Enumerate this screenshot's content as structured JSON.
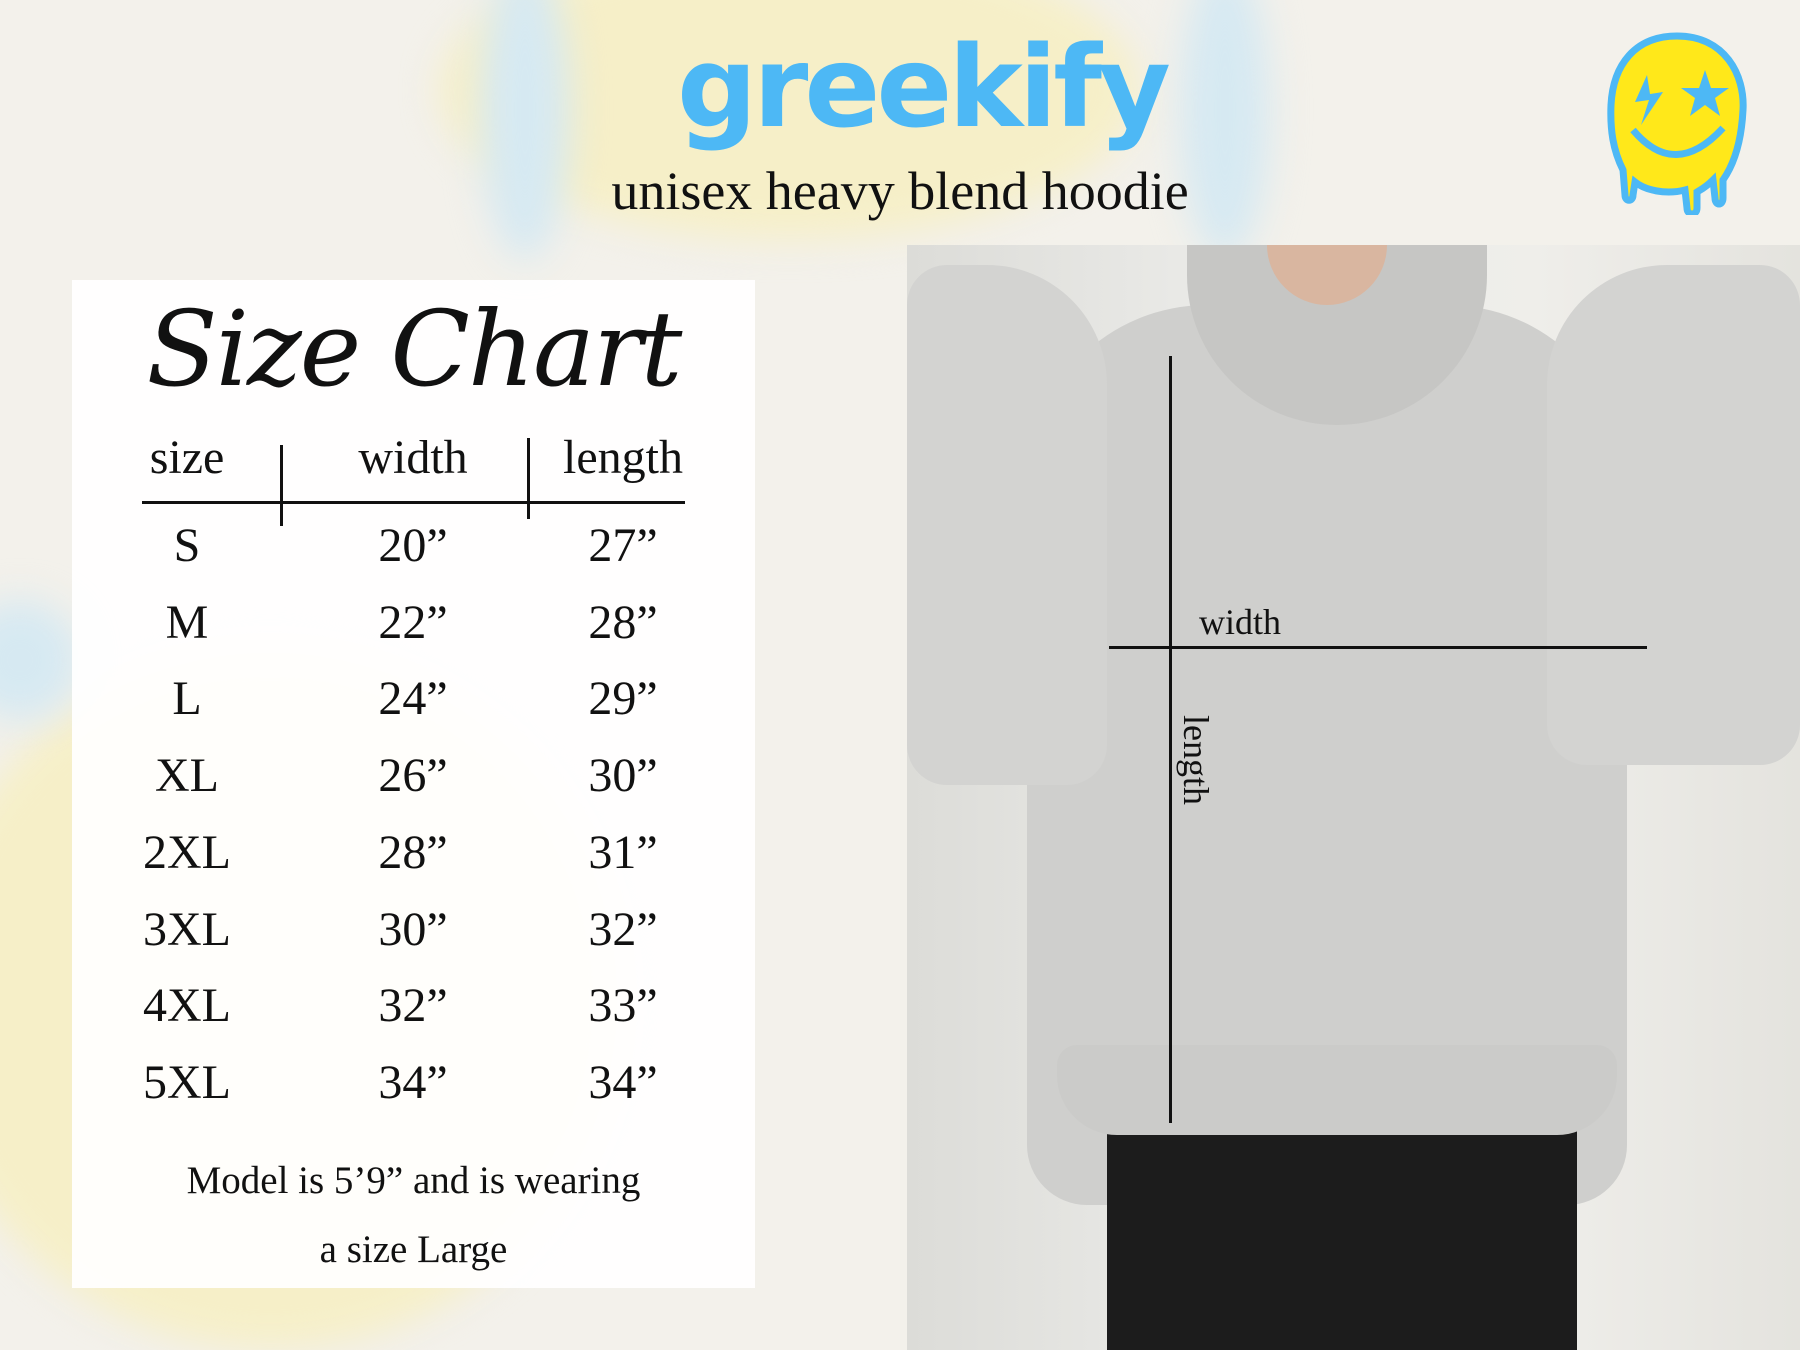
{
  "brand": {
    "logo_text": "greekify",
    "subtitle": "unisex heavy blend hoodie",
    "accent": "#4db8f5",
    "smiley_color": "#ffe81a"
  },
  "size_chart": {
    "title": "Size Chart",
    "headers": [
      "size",
      "width",
      "length"
    ],
    "rows": [
      {
        "size": "S",
        "width": "20”",
        "length": "27”"
      },
      {
        "size": "M",
        "width": "22”",
        "length": "28”"
      },
      {
        "size": "L",
        "width": "24”",
        "length": "29”"
      },
      {
        "size": "XL",
        "width": "26”",
        "length": "30”"
      },
      {
        "size": "2XL",
        "width": "28”",
        "length": "31”"
      },
      {
        "size": "3XL",
        "width": "30”",
        "length": "32”"
      },
      {
        "size": "4XL",
        "width": "32”",
        "length": "33”"
      },
      {
        "size": "5XL",
        "width": "34”",
        "length": "34”"
      }
    ],
    "note_line1": "Model is 5’9” and is wearing",
    "note_line2": "a size Large"
  },
  "photo": {
    "width_label": "width",
    "length_label": "length"
  }
}
